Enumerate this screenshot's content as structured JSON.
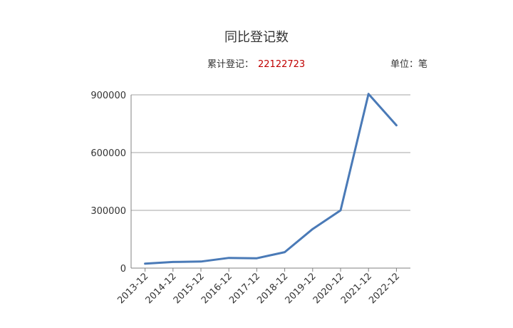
{
  "header": {
    "title": "同比登记数",
    "total_label": "累计登记：",
    "total_value": "22122723",
    "unit_text": "单位：笔"
  },
  "chart_data": {
    "type": "line",
    "title": "同比登记数",
    "xlabel": "",
    "ylabel": "",
    "categories": [
      "2013-12",
      "2014-12",
      "2015-12",
      "2016-12",
      "2017-12",
      "2018-12",
      "2019-12",
      "2020-12",
      "2021-12",
      "2022-12"
    ],
    "series": [
      {
        "values": [
          23000,
          32000,
          34000,
          53000,
          51000,
          83000,
          203000,
          300000,
          905000,
          742000
        ],
        "color": "#4a7ab7"
      }
    ],
    "yticks": [
      0,
      300000,
      600000,
      900000
    ],
    "ylim": [
      0,
      900000
    ],
    "grid": true,
    "legend": "none"
  }
}
